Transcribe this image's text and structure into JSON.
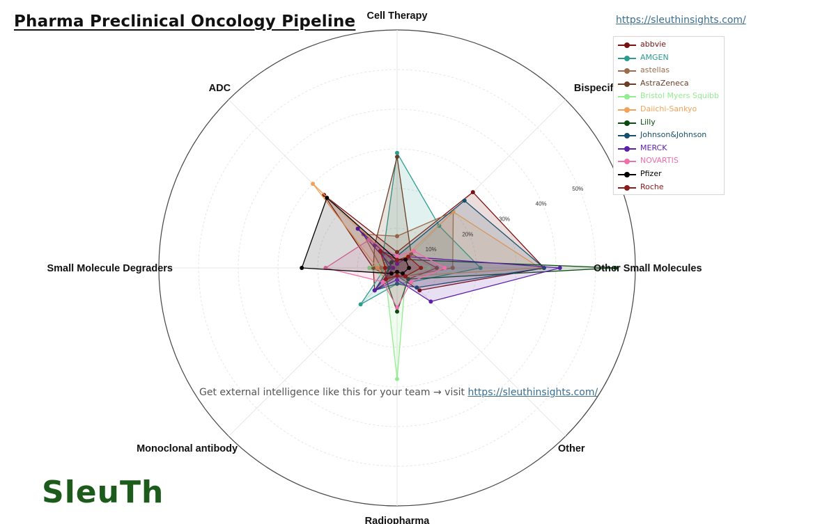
{
  "title": "Pharma Preclinical Oncology Pipeline",
  "top_url": "https://sleuthinsights.com/",
  "watermark": {
    "text": "Get external intelligence like this for your team → visit ",
    "link": "https://sleuthinsights.com/"
  },
  "logo_text": "SleuTh",
  "colors": {
    "abbvie": "#7a1010",
    "amgen": "#2a9d8f",
    "astellas": "#9c6b4e",
    "astrazeneca": "#6b3e26",
    "bms": "#90ee90",
    "daiichi": "#f4a259",
    "lilly": "#0b4a12",
    "jnj": "#174e6b",
    "merck": "#5b1fa8",
    "novartis": "#ee6fa9",
    "pfizer": "#000000",
    "roche": "#8b1a1a"
  },
  "chart_data": {
    "type": "radar",
    "title": "Pharma Preclinical Oncology Pipeline",
    "axes": [
      "Cell Therapy",
      "Bispecific antibody",
      "Other Small Molecules",
      "Other",
      "Radiopharma",
      "Monoclonal antibody",
      "Small Molecule Degraders",
      "ADC"
    ],
    "radial_ticks": [
      10,
      20,
      30,
      40,
      50
    ],
    "radial_tick_labels": [
      "10%",
      "20%",
      "30%",
      "40%",
      "50%"
    ],
    "rmax": 60,
    "grid": true,
    "legend_position": "top-right",
    "series": [
      {
        "name": "abbvie",
        "color_key": "abbvie",
        "values": [
          4,
          27,
          37,
          8,
          2,
          8,
          6,
          26
        ]
      },
      {
        "name": "AMGEN",
        "color_key": "amgen",
        "values": [
          29,
          15,
          21,
          5,
          4,
          13,
          3,
          5
        ]
      },
      {
        "name": "astellas",
        "color_key": "astellas",
        "values": [
          8,
          20,
          14,
          3,
          2,
          5,
          4,
          12
        ]
      },
      {
        "name": "AstraZeneca",
        "color_key": "astrazeneca",
        "values": [
          28,
          5,
          10,
          4,
          2,
          3,
          6,
          8
        ]
      },
      {
        "name": "Bristol Myers Squibb",
        "color_key": "bms",
        "values": [
          1,
          4,
          8,
          3,
          28,
          4,
          7,
          3
        ]
      },
      {
        "name": "Daiichi-Sankyo",
        "color_key": "daiichi",
        "values": [
          1,
          20,
          36,
          3,
          2,
          4,
          5,
          30
        ]
      },
      {
        "name": "Lilly",
        "color_key": "lilly",
        "values": [
          2,
          3,
          55,
          4,
          11,
          4,
          2,
          2
        ]
      },
      {
        "name": "Johnson&Johnson",
        "color_key": "jnj",
        "values": [
          3,
          24,
          37,
          7,
          4,
          8,
          2,
          6
        ]
      },
      {
        "name": "MERCK",
        "color_key": "merck",
        "values": [
          1,
          4,
          41,
          12,
          3,
          8,
          1,
          14
        ]
      },
      {
        "name": "NOVARTIS",
        "color_key": "novartis",
        "values": [
          3,
          6,
          12,
          5,
          10,
          5,
          18,
          10
        ]
      },
      {
        "name": "Pfizer",
        "color_key": "pfizer",
        "values": [
          2,
          3,
          3,
          2,
          1,
          2,
          24,
          25
        ]
      },
      {
        "name": "Roche",
        "color_key": "roche",
        "values": [
          2,
          4,
          6,
          3,
          2,
          4,
          3,
          6
        ]
      }
    ]
  }
}
